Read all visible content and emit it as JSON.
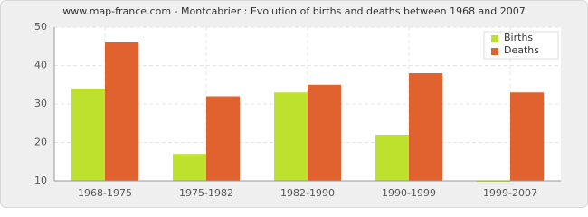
{
  "chart_data": {
    "type": "bar",
    "title": "www.map-france.com - Montcabrier : Evolution of births and deaths between 1968 and 2007",
    "categories": [
      "1968-1975",
      "1975-1982",
      "1982-1990",
      "1990-1999",
      "1999-2007"
    ],
    "series": [
      {
        "name": "Births",
        "color": "#bde12d",
        "values": [
          34,
          17,
          33,
          22,
          10
        ]
      },
      {
        "name": "Deaths",
        "color": "#e0632f",
        "values": [
          46,
          32,
          35,
          38,
          33
        ]
      }
    ],
    "ylim": [
      10,
      50
    ],
    "yticks": [
      10,
      20,
      30,
      40,
      50
    ],
    "grid": true,
    "legend": "top-right"
  }
}
